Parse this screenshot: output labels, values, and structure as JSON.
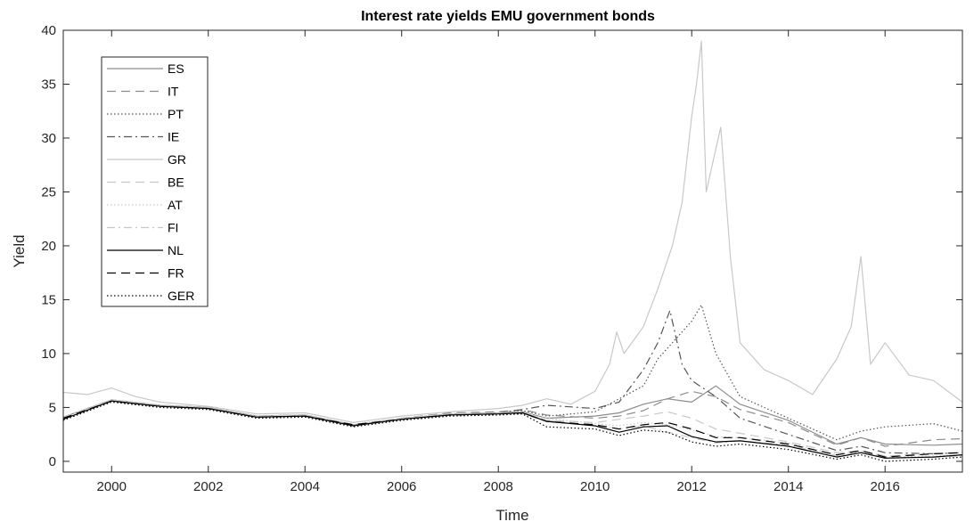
{
  "chart_data": {
    "type": "line",
    "title": "Interest rate yields EMU government bonds",
    "xlabel": "Time",
    "ylabel": "Yield",
    "xlim": [
      1999.0,
      2017.6
    ],
    "ylim": [
      -1,
      40
    ],
    "x_ticks": [
      2000,
      2002,
      2004,
      2006,
      2008,
      2010,
      2012,
      2014,
      2016
    ],
    "y_ticks": [
      0,
      5,
      10,
      15,
      20,
      25,
      30,
      35,
      40
    ],
    "legend_position": "top-left",
    "grid": false,
    "series": [
      {
        "name": "ES",
        "color": "#8c8c8c",
        "dash": "solid",
        "x": [
          1999.0,
          2000.0,
          2001.0,
          2002.0,
          2003.0,
          2004.0,
          2005.0,
          2006.0,
          2007.0,
          2008.0,
          2008.5,
          2009.0,
          2010.0,
          2010.5,
          2011.0,
          2011.5,
          2012.0,
          2012.5,
          2013.0,
          2014.0,
          2015.0,
          2015.5,
          2016.0,
          2017.0,
          2017.6
        ],
        "y": [
          4.1,
          5.7,
          5.2,
          5.0,
          4.2,
          4.3,
          3.4,
          3.9,
          4.4,
          4.5,
          4.6,
          4.0,
          4.2,
          4.5,
          5.3,
          5.8,
          5.5,
          7.0,
          5.3,
          3.8,
          1.6,
          2.2,
          1.6,
          1.5,
          1.6
        ]
      },
      {
        "name": "IT",
        "color": "#8c8c8c",
        "dash": "long",
        "x": [
          1999.0,
          2000.0,
          2001.0,
          2002.0,
          2003.0,
          2004.0,
          2005.0,
          2006.0,
          2007.0,
          2008.0,
          2008.5,
          2009.0,
          2010.0,
          2010.5,
          2011.0,
          2011.5,
          2012.0,
          2012.5,
          2013.0,
          2014.0,
          2015.0,
          2015.5,
          2016.0,
          2017.0,
          2017.6
        ],
        "y": [
          4.1,
          5.7,
          5.2,
          5.0,
          4.2,
          4.3,
          3.4,
          4.0,
          4.5,
          4.6,
          4.8,
          4.3,
          4.0,
          4.2,
          4.7,
          5.8,
          6.5,
          6.0,
          4.8,
          3.6,
          1.5,
          2.2,
          1.4,
          2.0,
          2.1
        ]
      },
      {
        "name": "PT",
        "color": "#555555",
        "dash": "dotted",
        "x": [
          1999.0,
          2000.0,
          2001.0,
          2002.0,
          2003.0,
          2004.0,
          2005.0,
          2006.0,
          2007.0,
          2008.0,
          2008.5,
          2009.0,
          2010.0,
          2010.5,
          2011.0,
          2011.3,
          2011.6,
          2012.0,
          2012.2,
          2012.5,
          2013.0,
          2014.0,
          2015.0,
          2015.5,
          2016.0,
          2017.0,
          2017.6
        ],
        "y": [
          4.1,
          5.7,
          5.2,
          5.0,
          4.2,
          4.3,
          3.4,
          4.0,
          4.4,
          4.5,
          4.7,
          4.2,
          4.6,
          5.8,
          7.0,
          9.5,
          11.0,
          13.0,
          14.5,
          10.0,
          6.0,
          4.0,
          2.0,
          2.8,
          3.2,
          3.5,
          2.8
        ]
      },
      {
        "name": "IE",
        "color": "#555555",
        "dash": "dashdot",
        "x": [
          1999.0,
          2000.0,
          2001.0,
          2002.0,
          2003.0,
          2004.0,
          2005.0,
          2006.0,
          2007.0,
          2008.0,
          2008.5,
          2009.0,
          2010.0,
          2010.5,
          2011.0,
          2011.3,
          2011.55,
          2011.8,
          2012.0,
          2012.5,
          2013.0,
          2014.0,
          2015.0,
          2015.5,
          2016.0,
          2017.0,
          2017.6
        ],
        "y": [
          4.1,
          5.7,
          5.2,
          5.0,
          4.2,
          4.3,
          3.4,
          4.0,
          4.4,
          4.5,
          4.8,
          5.2,
          4.9,
          5.5,
          8.5,
          11.0,
          14.0,
          9.0,
          7.5,
          6.0,
          4.0,
          2.5,
          1.0,
          1.4,
          0.8,
          0.7,
          0.8
        ]
      },
      {
        "name": "GR",
        "color": "#c8c8c8",
        "dash": "solid",
        "x": [
          1999.0,
          1999.5,
          2000.0,
          2000.5,
          2001.0,
          2002.0,
          2003.0,
          2004.0,
          2005.0,
          2006.0,
          2007.0,
          2008.0,
          2008.5,
          2009.0,
          2009.5,
          2010.0,
          2010.3,
          2010.45,
          2010.6,
          2011.0,
          2011.3,
          2011.6,
          2011.8,
          2012.0,
          2012.1,
          2012.2,
          2012.3,
          2012.45,
          2012.6,
          2012.8,
          2013.0,
          2013.5,
          2014.0,
          2014.5,
          2015.0,
          2015.3,
          2015.5,
          2015.7,
          2016.0,
          2016.5,
          2017.0,
          2017.6
        ],
        "y": [
          6.4,
          6.2,
          6.8,
          6.0,
          5.5,
          5.1,
          4.4,
          4.5,
          3.6,
          4.2,
          4.6,
          4.9,
          5.2,
          5.8,
          5.3,
          6.5,
          9.0,
          12.0,
          10.0,
          12.5,
          16.0,
          20.0,
          24.0,
          32.0,
          35.0,
          39.0,
          25.0,
          28.0,
          31.0,
          19.0,
          11.0,
          8.5,
          7.5,
          6.2,
          9.5,
          12.5,
          19.0,
          9.0,
          11.0,
          8.0,
          7.5,
          5.5
        ]
      },
      {
        "name": "BE",
        "color": "#c8c8c8",
        "dash": "long",
        "x": [
          1999.0,
          2000.0,
          2001.0,
          2002.0,
          2003.0,
          2004.0,
          2005.0,
          2006.0,
          2007.0,
          2008.0,
          2008.5,
          2009.0,
          2010.0,
          2010.5,
          2011.0,
          2011.5,
          2012.0,
          2012.5,
          2013.0,
          2014.0,
          2015.0,
          2015.5,
          2016.0,
          2017.0,
          2017.6
        ],
        "y": [
          4.1,
          5.7,
          5.2,
          5.0,
          4.2,
          4.3,
          3.4,
          4.0,
          4.4,
          4.5,
          4.6,
          3.8,
          3.6,
          3.9,
          4.2,
          4.6,
          4.0,
          3.0,
          2.6,
          1.8,
          0.8,
          1.0,
          0.5,
          0.7,
          0.8
        ]
      },
      {
        "name": "AT",
        "color": "#c8c8c8",
        "dash": "dotted",
        "x": [
          1999.0,
          2000.0,
          2001.0,
          2002.0,
          2003.0,
          2004.0,
          2005.0,
          2006.0,
          2007.0,
          2008.0,
          2008.5,
          2009.0,
          2010.0,
          2010.5,
          2011.0,
          2011.5,
          2012.0,
          2012.5,
          2013.0,
          2014.0,
          2015.0,
          2015.5,
          2016.0,
          2017.0,
          2017.6
        ],
        "y": [
          4.1,
          5.7,
          5.2,
          5.0,
          4.2,
          4.3,
          3.4,
          4.0,
          4.4,
          4.5,
          4.6,
          4.0,
          3.5,
          3.3,
          3.6,
          3.4,
          2.9,
          2.3,
          2.2,
          1.7,
          0.6,
          0.9,
          0.4,
          0.5,
          0.6
        ]
      },
      {
        "name": "FI",
        "color": "#c8c8c8",
        "dash": "dashdot",
        "x": [
          1999.0,
          2000.0,
          2001.0,
          2002.0,
          2003.0,
          2004.0,
          2005.0,
          2006.0,
          2007.0,
          2008.0,
          2008.5,
          2009.0,
          2010.0,
          2010.5,
          2011.0,
          2011.5,
          2012.0,
          2012.5,
          2013.0,
          2014.0,
          2015.0,
          2015.5,
          2016.0,
          2017.0,
          2017.6
        ],
        "y": [
          4.1,
          5.7,
          5.2,
          5.0,
          4.2,
          4.3,
          3.4,
          4.0,
          4.4,
          4.5,
          4.5,
          3.8,
          3.3,
          3.0,
          3.3,
          2.7,
          2.2,
          1.7,
          1.9,
          1.5,
          0.5,
          0.8,
          0.3,
          0.4,
          0.5
        ]
      },
      {
        "name": "NL",
        "color": "#000000",
        "dash": "solid",
        "x": [
          1999.0,
          2000.0,
          2001.0,
          2002.0,
          2003.0,
          2004.0,
          2005.0,
          2006.0,
          2007.0,
          2008.0,
          2008.5,
          2009.0,
          2010.0,
          2010.5,
          2011.0,
          2011.5,
          2012.0,
          2012.5,
          2013.0,
          2014.0,
          2015.0,
          2015.5,
          2016.0,
          2017.0,
          2017.6
        ],
        "y": [
          3.9,
          5.6,
          5.1,
          4.9,
          4.1,
          4.2,
          3.3,
          3.9,
          4.3,
          4.4,
          4.5,
          3.7,
          3.3,
          2.7,
          3.2,
          3.3,
          2.3,
          1.8,
          1.9,
          1.4,
          0.4,
          0.8,
          0.3,
          0.4,
          0.6
        ]
      },
      {
        "name": "FR",
        "color": "#000000",
        "dash": "long",
        "x": [
          1999.0,
          2000.0,
          2001.0,
          2002.0,
          2003.0,
          2004.0,
          2005.0,
          2006.0,
          2007.0,
          2008.0,
          2008.5,
          2009.0,
          2010.0,
          2010.5,
          2011.0,
          2011.5,
          2012.0,
          2012.5,
          2013.0,
          2014.0,
          2015.0,
          2015.5,
          2016.0,
          2017.0,
          2017.6
        ],
        "y": [
          4.0,
          5.6,
          5.1,
          4.9,
          4.1,
          4.2,
          3.4,
          3.9,
          4.3,
          4.4,
          4.5,
          3.7,
          3.4,
          3.0,
          3.4,
          3.6,
          3.0,
          2.2,
          2.2,
          1.6,
          0.6,
          1.0,
          0.4,
          0.7,
          0.8
        ]
      },
      {
        "name": "GER",
        "color": "#000000",
        "dash": "dotted",
        "x": [
          1999.0,
          2000.0,
          2001.0,
          2002.0,
          2003.0,
          2004.0,
          2005.0,
          2006.0,
          2007.0,
          2008.0,
          2008.5,
          2009.0,
          2010.0,
          2010.5,
          2011.0,
          2011.5,
          2012.0,
          2012.5,
          2013.0,
          2014.0,
          2015.0,
          2015.5,
          2016.0,
          2017.0,
          2017.6
        ],
        "y": [
          3.8,
          5.5,
          5.0,
          4.8,
          4.0,
          4.1,
          3.2,
          3.8,
          4.2,
          4.3,
          4.4,
          3.2,
          3.0,
          2.4,
          2.9,
          2.7,
          1.8,
          1.4,
          1.6,
          1.1,
          0.2,
          0.6,
          0.0,
          0.2,
          0.4
        ]
      }
    ]
  }
}
